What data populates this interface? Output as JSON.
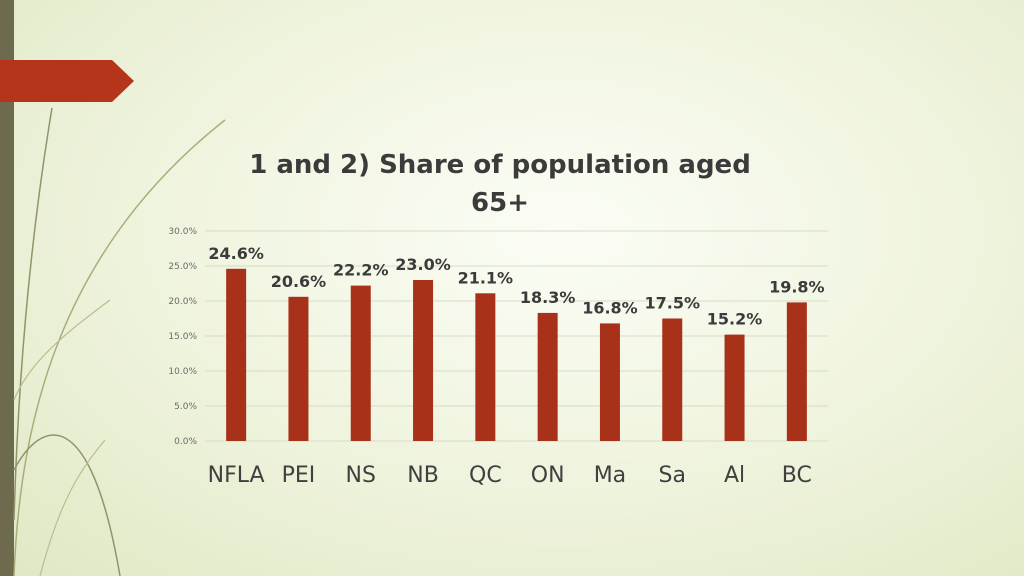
{
  "colors": {
    "bar": "#a8311a",
    "accent": "#b5351a",
    "sidebar": "#6e6a4e",
    "grid": "#d6dcc6",
    "label": "#3b3b3b"
  },
  "chart_data": {
    "type": "bar",
    "title": "1 and 2) Share of population aged 65+",
    "categories": [
      "NFLA",
      "PEI",
      "NS",
      "NB",
      "QC",
      "ON",
      "Ma",
      "Sa",
      "Al",
      "BC"
    ],
    "values": [
      24.6,
      20.6,
      22.2,
      23.0,
      21.1,
      18.3,
      16.8,
      17.5,
      15.2,
      19.8
    ],
    "data_labels": [
      "24.6%",
      "20.6%",
      "22.2%",
      "23.0%",
      "21.1%",
      "18.3%",
      "16.8%",
      "17.5%",
      "15.2%",
      "19.8%"
    ],
    "y_ticks": [
      "0.0%",
      "5.0%",
      "10.0%",
      "15.0%",
      "20.0%",
      "25.0%",
      "30.0%"
    ],
    "ylim": [
      0,
      30
    ],
    "xlabel": "",
    "ylabel": "",
    "grid": true,
    "legend": "none"
  }
}
